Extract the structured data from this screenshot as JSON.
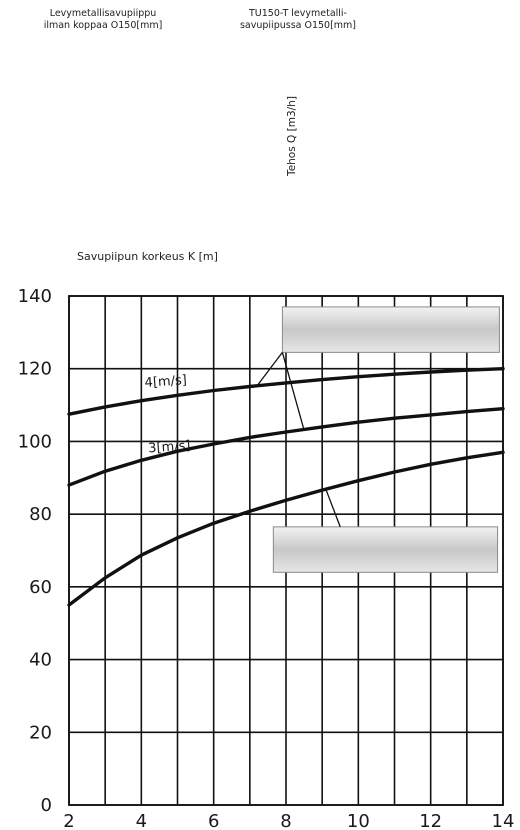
{
  "captions": {
    "left": "Levymetallisavupiippu\nilman koppaa O150[mm]",
    "right": "TU150-T levymetalli-\nsavupiipussa O150[mm]"
  },
  "chart_data": {
    "type": "line",
    "title": "",
    "xlabel": "Savupiipun korkeus K [m]",
    "ylabel": "Tehos Q [m3/h]",
    "xlim": [
      2,
      14
    ],
    "ylim": [
      0,
      140
    ],
    "xticks": [
      2,
      4,
      6,
      8,
      10,
      12,
      14
    ],
    "yticks": [
      0,
      20,
      40,
      60,
      80,
      100,
      120,
      140
    ],
    "grid": true,
    "series": [
      {
        "name": "4[m/s]",
        "x": [
          2,
          3,
          4,
          5,
          6,
          7,
          8,
          9,
          10,
          11,
          12,
          13,
          14
        ],
        "y": [
          107.5,
          109.5,
          111.2,
          112.7,
          114.0,
          115.1,
          116.1,
          117.0,
          117.8,
          118.5,
          119.1,
          119.6,
          120.0
        ]
      },
      {
        "name": "3[m/s]",
        "x": [
          2,
          3,
          4,
          5,
          6,
          7,
          8,
          9,
          10,
          11,
          12,
          13,
          14
        ],
        "y": [
          88.0,
          91.8,
          94.8,
          97.3,
          99.3,
          101.1,
          102.6,
          104.0,
          105.3,
          106.4,
          107.3,
          108.2,
          109.0
        ]
      },
      {
        "name": "",
        "x": [
          2,
          3,
          4,
          5,
          6,
          7,
          8,
          9,
          10,
          11,
          12,
          13,
          14
        ],
        "y": [
          55.0,
          62.5,
          68.7,
          73.5,
          77.5,
          80.8,
          83.8,
          86.6,
          89.2,
          91.6,
          93.7,
          95.5,
          97.0
        ]
      }
    ]
  }
}
